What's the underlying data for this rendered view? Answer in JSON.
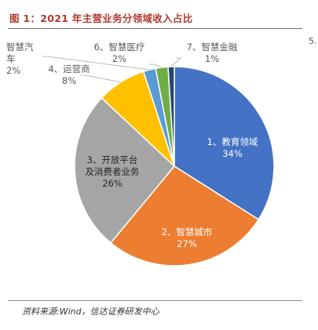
{
  "header": {
    "figure_title": "图 1：2021 年主营业务分领域收入占比",
    "side_mark": "5."
  },
  "source_note": "资料来源:Wind，信达证券研发中心",
  "chart_data": {
    "type": "pie",
    "title": "图 1：2021 年主营业务分领域收入占比",
    "slices": [
      {
        "label": "1、教育领域",
        "value": 34,
        "display": "34%",
        "color": "#4472C4",
        "label_color": "#ffffff"
      },
      {
        "label": "2、智慧城市",
        "value": 27,
        "display": "27%",
        "color": "#ED7D31",
        "label_color": "#ffffff"
      },
      {
        "label": "3、开放平台及消费者业务",
        "value": 26,
        "display": "26%",
        "color": "#A5A5A5",
        "label_color": "#262626"
      },
      {
        "label": "4、运营商",
        "value": 8,
        "display": "8%",
        "color": "#FFC000",
        "label_color": "#595959"
      },
      {
        "label": "智慧汽车",
        "value": 2,
        "display": "2%",
        "color": "#5B9BD5",
        "label_color": "#595959"
      },
      {
        "label": "6、智慧医疗",
        "value": 2,
        "display": "2%",
        "color": "#70AD47",
        "label_color": "#595959"
      },
      {
        "label": "7、智慧金融",
        "value": 1,
        "display": "1%",
        "color": "#264478",
        "label_color": "#595959"
      }
    ],
    "legend": "none"
  }
}
